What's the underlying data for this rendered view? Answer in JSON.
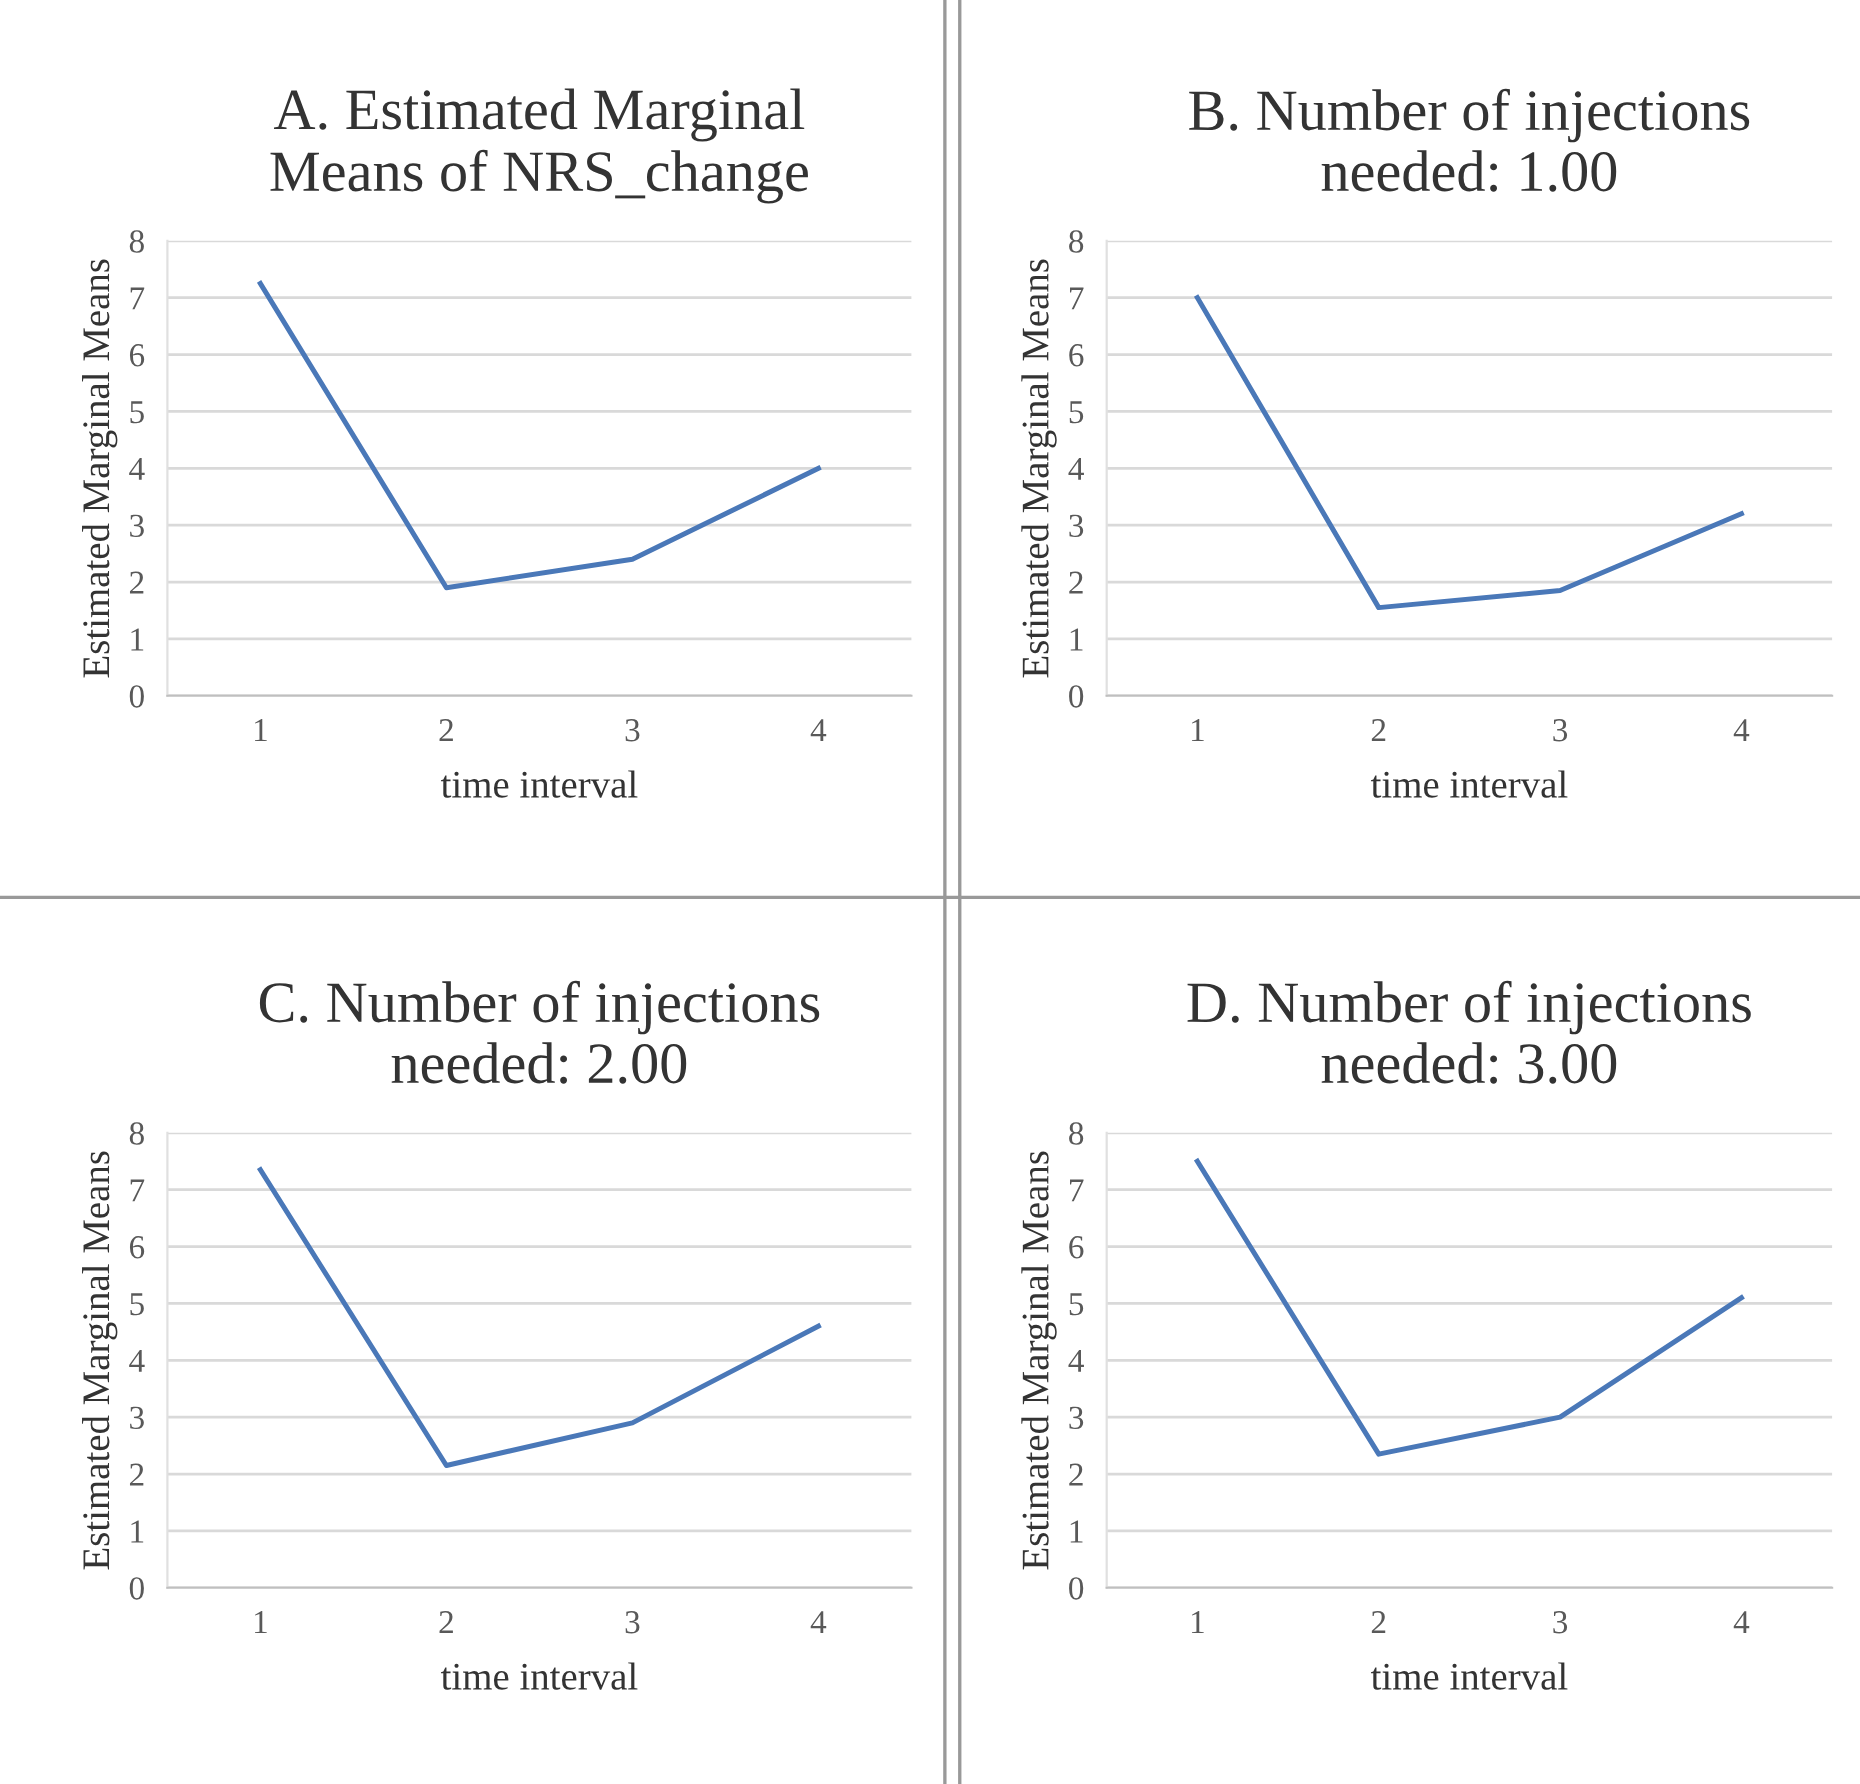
{
  "chart_data": [
    {
      "type": "line",
      "title": "A. Estimated Marginal\nMeans of NRS_change",
      "xlabel": "time interval",
      "ylabel": "Estimated Marginal Means",
      "categories": [
        "1",
        "2",
        "3",
        "4"
      ],
      "series": [
        {
          "color": "#4a78b8",
          "values": [
            7.25,
            1.9,
            2.4,
            4.0
          ]
        }
      ],
      "ylim": [
        0,
        8
      ],
      "yticks": [
        0,
        1,
        2,
        3,
        4,
        5,
        6,
        7,
        8
      ],
      "grid": "y",
      "legend": false
    },
    {
      "type": "line",
      "title": "B. Number of injections\nneeded: 1.00",
      "xlabel": "time interval",
      "ylabel": "Estimated Marginal Means",
      "categories": [
        "1",
        "2",
        "3",
        "4"
      ],
      "series": [
        {
          "color": "#4a78b8",
          "values": [
            7.0,
            1.55,
            1.85,
            3.2
          ]
        }
      ],
      "ylim": [
        0,
        8
      ],
      "yticks": [
        0,
        1,
        2,
        3,
        4,
        5,
        6,
        7,
        8
      ],
      "grid": "y",
      "legend": false
    },
    {
      "type": "line",
      "title": "C. Number of injections\nneeded: 2.00",
      "xlabel": "time interval",
      "ylabel": "Estimated Marginal Means",
      "categories": [
        "1",
        "2",
        "3",
        "4"
      ],
      "series": [
        {
          "color": "#4a78b8",
          "values": [
            7.35,
            2.15,
            2.9,
            4.6
          ]
        }
      ],
      "ylim": [
        0,
        8
      ],
      "yticks": [
        0,
        1,
        2,
        3,
        4,
        5,
        6,
        7,
        8
      ],
      "grid": "y",
      "legend": false
    },
    {
      "type": "line",
      "title": "D. Number of injections\nneeded: 3.00",
      "xlabel": "time interval",
      "ylabel": "Estimated Marginal Means",
      "categories": [
        "1",
        "2",
        "3",
        "4"
      ],
      "series": [
        {
          "color": "#4a78b8",
          "values": [
            7.5,
            2.35,
            3.0,
            5.1
          ]
        }
      ],
      "ylim": [
        0,
        8
      ],
      "yticks": [
        0,
        1,
        2,
        3,
        4,
        5,
        6,
        7,
        8
      ],
      "grid": "y",
      "legend": false
    }
  ]
}
